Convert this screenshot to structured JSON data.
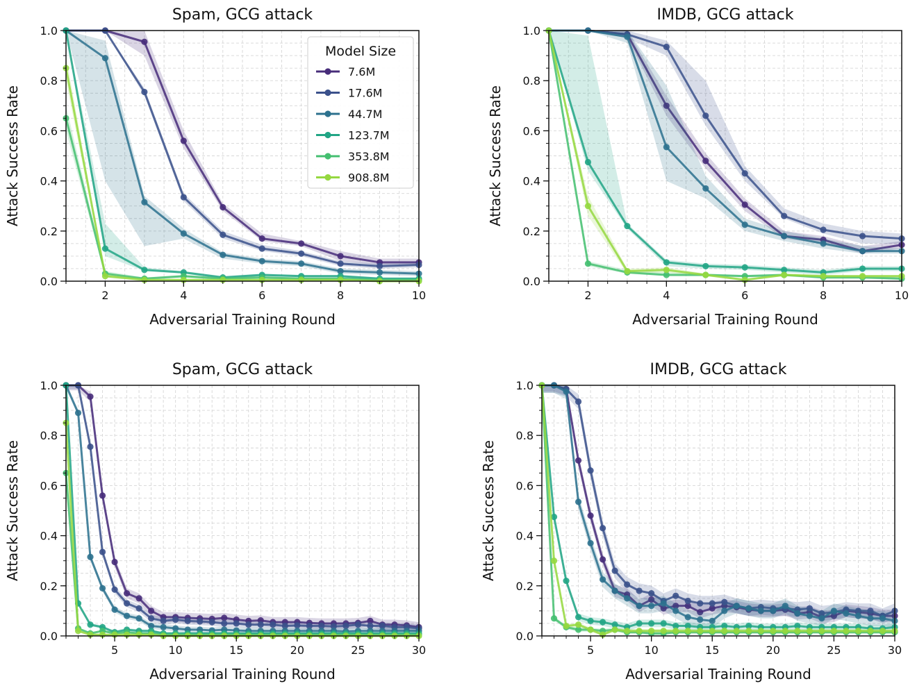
{
  "legend": {
    "title": "Model Size",
    "items": [
      {
        "label": "7.6M",
        "color": "#472c7a"
      },
      {
        "label": "17.6M",
        "color": "#3b518b"
      },
      {
        "label": "44.7M",
        "color": "#2c718e"
      },
      {
        "label": "123.7M",
        "color": "#21a585"
      },
      {
        "label": "353.8M",
        "color": "#44bf70"
      },
      {
        "label": "908.8M",
        "color": "#95d840"
      }
    ],
    "placement": "top-right of first panel"
  },
  "chart_data": [
    {
      "type": "line",
      "title": "Spam, GCG attack",
      "xlabel": "Adversarial Training Round",
      "ylabel": "Attack Success Rate",
      "xlim": [
        1,
        10
      ],
      "ylim": [
        0,
        1
      ],
      "xticks": [
        2,
        4,
        6,
        8,
        10
      ],
      "yticks": [
        0.0,
        0.2,
        0.4,
        0.6,
        0.8,
        1.0
      ],
      "grid": true,
      "x": [
        1,
        2,
        3,
        4,
        5,
        6,
        7,
        8,
        9,
        10
      ],
      "series": [
        {
          "name": "7.6M",
          "values": [
            1.0,
            1.0,
            0.955,
            0.56,
            0.295,
            0.17,
            0.15,
            0.1,
            0.075,
            0.075
          ],
          "lower": [
            1.0,
            1.0,
            0.9,
            0.53,
            0.28,
            0.16,
            0.14,
            0.08,
            0.065,
            0.065
          ],
          "upper": [
            1.0,
            1.0,
            1.0,
            0.6,
            0.31,
            0.19,
            0.16,
            0.12,
            0.09,
            0.09
          ]
        },
        {
          "name": "17.6M",
          "values": [
            1.0,
            1.0,
            0.755,
            0.335,
            0.185,
            0.13,
            0.11,
            0.07,
            0.06,
            0.065
          ],
          "lower": [
            1.0,
            1.0,
            0.74,
            0.32,
            0.17,
            0.12,
            0.1,
            0.06,
            0.05,
            0.055
          ],
          "upper": [
            1.0,
            1.0,
            0.77,
            0.35,
            0.2,
            0.145,
            0.12,
            0.08,
            0.07,
            0.075
          ]
        },
        {
          "name": "44.7M",
          "values": [
            1.0,
            0.89,
            0.315,
            0.19,
            0.105,
            0.08,
            0.07,
            0.04,
            0.035,
            0.03
          ],
          "lower": [
            1.0,
            0.4,
            0.14,
            0.17,
            0.09,
            0.07,
            0.06,
            0.03,
            0.025,
            0.02
          ],
          "upper": [
            1.0,
            0.96,
            0.34,
            0.21,
            0.115,
            0.09,
            0.08,
            0.05,
            0.045,
            0.04
          ]
        },
        {
          "name": "123.7M",
          "values": [
            1.0,
            0.13,
            0.045,
            0.035,
            0.015,
            0.025,
            0.02,
            0.02,
            0.01,
            0.01
          ],
          "lower": [
            1.0,
            0.1,
            0.04,
            0.03,
            0.01,
            0.02,
            0.015,
            0.015,
            0.005,
            0.005
          ],
          "upper": [
            1.0,
            0.23,
            0.055,
            0.04,
            0.02,
            0.03,
            0.025,
            0.025,
            0.015,
            0.015
          ]
        },
        {
          "name": "353.8M",
          "values": [
            0.65,
            0.03,
            0.01,
            0.02,
            0.01,
            0.015,
            0.01,
            0.01,
            0.005,
            0.005
          ],
          "lower": [
            0.6,
            0.02,
            0.005,
            0.015,
            0.005,
            0.01,
            0.005,
            0.005,
            0.0,
            0.0
          ],
          "upper": [
            0.7,
            0.04,
            0.015,
            0.025,
            0.015,
            0.02,
            0.015,
            0.015,
            0.01,
            0.01
          ]
        },
        {
          "name": "908.8M",
          "values": [
            0.85,
            0.02,
            0.005,
            0.005,
            0.005,
            0.005,
            0.005,
            0.005,
            0.0,
            0.0
          ],
          "lower": [
            0.8,
            0.015,
            0.0,
            0.0,
            0.0,
            0.0,
            0.0,
            0.0,
            0.0,
            0.0
          ],
          "upper": [
            0.9,
            0.03,
            0.01,
            0.01,
            0.01,
            0.01,
            0.01,
            0.01,
            0.005,
            0.005
          ]
        }
      ]
    },
    {
      "type": "line",
      "title": "IMDB, GCG attack",
      "xlabel": "Adversarial Training Round",
      "ylabel": "Attack Success Rate",
      "xlim": [
        1,
        10
      ],
      "ylim": [
        0,
        1
      ],
      "xticks": [
        2,
        4,
        6,
        8,
        10
      ],
      "yticks": [
        0.0,
        0.2,
        0.4,
        0.6,
        0.8,
        1.0
      ],
      "grid": true,
      "x": [
        1,
        2,
        3,
        4,
        5,
        6,
        7,
        8,
        9,
        10
      ],
      "series": [
        {
          "name": "7.6M",
          "values": [
            1.0,
            1.0,
            0.985,
            0.7,
            0.48,
            0.305,
            0.18,
            0.165,
            0.12,
            0.145
          ],
          "lower": [
            1.0,
            1.0,
            0.97,
            0.66,
            0.45,
            0.28,
            0.17,
            0.15,
            0.11,
            0.13
          ],
          "upper": [
            1.0,
            1.0,
            1.0,
            0.74,
            0.51,
            0.33,
            0.2,
            0.18,
            0.14,
            0.16
          ]
        },
        {
          "name": "17.6M",
          "values": [
            1.0,
            1.0,
            0.985,
            0.935,
            0.66,
            0.43,
            0.26,
            0.205,
            0.18,
            0.17
          ],
          "lower": [
            1.0,
            1.0,
            0.97,
            0.9,
            0.62,
            0.4,
            0.25,
            0.19,
            0.15,
            0.15
          ],
          "upper": [
            1.0,
            1.0,
            1.0,
            0.96,
            0.8,
            0.46,
            0.29,
            0.23,
            0.2,
            0.19
          ]
        },
        {
          "name": "44.7M",
          "values": [
            1.0,
            1.0,
            0.975,
            0.535,
            0.37,
            0.225,
            0.18,
            0.15,
            0.12,
            0.12
          ],
          "lower": [
            1.0,
            1.0,
            0.95,
            0.4,
            0.33,
            0.2,
            0.16,
            0.13,
            0.11,
            0.11
          ],
          "upper": [
            1.0,
            1.0,
            1.0,
            0.78,
            0.42,
            0.25,
            0.2,
            0.17,
            0.14,
            0.13
          ]
        },
        {
          "name": "123.7M",
          "values": [
            1.0,
            0.475,
            0.22,
            0.075,
            0.06,
            0.055,
            0.045,
            0.035,
            0.05,
            0.05
          ],
          "lower": [
            1.0,
            0.44,
            0.21,
            0.06,
            0.05,
            0.045,
            0.035,
            0.025,
            0.04,
            0.04
          ],
          "upper": [
            1.0,
            0.98,
            0.23,
            0.085,
            0.07,
            0.065,
            0.055,
            0.045,
            0.06,
            0.06
          ]
        },
        {
          "name": "353.8M",
          "values": [
            1.0,
            0.07,
            0.035,
            0.025,
            0.025,
            0.02,
            0.025,
            0.015,
            0.015,
            0.01
          ],
          "lower": [
            1.0,
            0.06,
            0.03,
            0.02,
            0.02,
            0.015,
            0.02,
            0.01,
            0.01,
            0.005
          ],
          "upper": [
            1.0,
            0.08,
            0.045,
            0.035,
            0.03,
            0.025,
            0.03,
            0.02,
            0.02,
            0.015
          ]
        },
        {
          "name": "908.8M",
          "values": [
            1.0,
            0.3,
            0.04,
            0.045,
            0.025,
            0.005,
            0.025,
            0.02,
            0.02,
            0.02
          ],
          "lower": [
            1.0,
            0.26,
            0.03,
            0.035,
            0.02,
            0.0,
            0.02,
            0.015,
            0.015,
            0.015
          ],
          "upper": [
            1.0,
            0.34,
            0.05,
            0.055,
            0.03,
            0.01,
            0.03,
            0.025,
            0.025,
            0.025
          ]
        }
      ]
    },
    {
      "type": "line",
      "title": "Spam, GCG attack",
      "xlabel": "Adversarial Training Round",
      "ylabel": "Attack Success Rate",
      "xlim": [
        1,
        30
      ],
      "ylim": [
        0,
        1
      ],
      "xticks": [
        5,
        10,
        15,
        20,
        25,
        30
      ],
      "yticks": [
        0.0,
        0.2,
        0.4,
        0.6,
        0.8,
        1.0
      ],
      "grid": true,
      "x": [
        1,
        2,
        3,
        4,
        5,
        6,
        7,
        8,
        9,
        10,
        11,
        12,
        13,
        14,
        15,
        16,
        17,
        18,
        19,
        20,
        21,
        22,
        23,
        24,
        25,
        26,
        27,
        28,
        29,
        30
      ],
      "series": [
        {
          "name": "7.6M",
          "values": [
            1.0,
            1.0,
            0.955,
            0.56,
            0.295,
            0.17,
            0.15,
            0.1,
            0.075,
            0.075,
            0.072,
            0.07,
            0.068,
            0.072,
            0.065,
            0.06,
            0.062,
            0.055,
            0.055,
            0.055,
            0.052,
            0.05,
            0.05,
            0.05,
            0.052,
            0.06,
            0.045,
            0.045,
            0.042,
            0.035
          ],
          "band": 0.02
        },
        {
          "name": "17.6M",
          "values": [
            1.0,
            1.0,
            0.755,
            0.335,
            0.185,
            0.13,
            0.11,
            0.07,
            0.06,
            0.065,
            0.06,
            0.058,
            0.055,
            0.05,
            0.05,
            0.045,
            0.045,
            0.045,
            0.04,
            0.042,
            0.04,
            0.04,
            0.038,
            0.04,
            0.045,
            0.04,
            0.04,
            0.035,
            0.035,
            0.03
          ],
          "band": 0.015
        },
        {
          "name": "44.7M",
          "values": [
            1.0,
            0.89,
            0.315,
            0.19,
            0.105,
            0.08,
            0.07,
            0.04,
            0.035,
            0.03,
            0.025,
            0.025,
            0.022,
            0.025,
            0.022,
            0.02,
            0.02,
            0.02,
            0.02,
            0.02,
            0.02,
            0.02,
            0.02,
            0.018,
            0.02,
            0.02,
            0.02,
            0.02,
            0.02,
            0.02
          ],
          "band": 0.012
        },
        {
          "name": "123.7M",
          "values": [
            1.0,
            0.13,
            0.045,
            0.035,
            0.015,
            0.025,
            0.02,
            0.02,
            0.01,
            0.01,
            0.01,
            0.01,
            0.01,
            0.01,
            0.01,
            0.01,
            0.01,
            0.01,
            0.01,
            0.01,
            0.01,
            0.01,
            0.01,
            0.01,
            0.01,
            0.01,
            0.01,
            0.01,
            0.01,
            0.01
          ],
          "band": 0.006
        },
        {
          "name": "353.8M",
          "values": [
            0.65,
            0.03,
            0.01,
            0.02,
            0.01,
            0.015,
            0.01,
            0.01,
            0.005,
            0.005,
            0.005,
            0.005,
            0.005,
            0.005,
            0.005,
            0.005,
            0.005,
            0.005,
            0.005,
            0.005,
            0.005,
            0.005,
            0.005,
            0.005,
            0.005,
            0.005,
            0.005,
            0.005,
            0.005,
            0.005
          ],
          "band": 0.004
        },
        {
          "name": "908.8M",
          "values": [
            0.85,
            0.02,
            0.005,
            0.005,
            0.005,
            0.005,
            0.005,
            0.005,
            0.0,
            0.0,
            0.0,
            0.0,
            0.0,
            0.0,
            0.0,
            0.0,
            0.0,
            0.0,
            0.0,
            0.0,
            0.0,
            0.0,
            0.0,
            0.0,
            0.0,
            0.0,
            0.0,
            0.0,
            0.0,
            0.0
          ],
          "band": 0.004
        }
      ]
    },
    {
      "type": "line",
      "title": "IMDB, GCG attack",
      "xlabel": "Adversarial Training Round",
      "ylabel": "Attack Success Rate",
      "xlim": [
        1,
        30
      ],
      "ylim": [
        0,
        1
      ],
      "xticks": [
        5,
        10,
        15,
        20,
        25,
        30
      ],
      "yticks": [
        0.0,
        0.2,
        0.4,
        0.6,
        0.8,
        1.0
      ],
      "grid": true,
      "x": [
        1,
        2,
        3,
        4,
        5,
        6,
        7,
        8,
        9,
        10,
        11,
        12,
        13,
        14,
        15,
        16,
        17,
        18,
        19,
        20,
        21,
        22,
        23,
        24,
        25,
        26,
        27,
        28,
        29,
        30
      ],
      "series": [
        {
          "name": "7.6M",
          "values": [
            1.0,
            1.0,
            0.985,
            0.7,
            0.48,
            0.305,
            0.18,
            0.165,
            0.12,
            0.145,
            0.11,
            0.12,
            0.12,
            0.095,
            0.11,
            0.12,
            0.115,
            0.105,
            0.1,
            0.1,
            0.105,
            0.09,
            0.095,
            0.075,
            0.08,
            0.1,
            0.095,
            0.09,
            0.08,
            0.08
          ],
          "band": 0.025
        },
        {
          "name": "17.6M",
          "values": [
            1.0,
            1.0,
            0.985,
            0.935,
            0.66,
            0.43,
            0.26,
            0.205,
            0.18,
            0.17,
            0.14,
            0.16,
            0.14,
            0.13,
            0.13,
            0.135,
            0.12,
            0.11,
            0.115,
            0.11,
            0.11,
            0.105,
            0.11,
            0.09,
            0.095,
            0.105,
            0.1,
            0.1,
            0.08,
            0.1
          ],
          "band": 0.03
        },
        {
          "name": "44.7M",
          "values": [
            1.0,
            1.0,
            0.975,
            0.535,
            0.37,
            0.225,
            0.18,
            0.15,
            0.12,
            0.12,
            0.13,
            0.1,
            0.075,
            0.065,
            0.06,
            0.1,
            0.12,
            0.11,
            0.1,
            0.1,
            0.12,
            0.09,
            0.08,
            0.07,
            0.1,
            0.09,
            0.08,
            0.07,
            0.07,
            0.06
          ],
          "band": 0.03
        },
        {
          "name": "123.7M",
          "values": [
            1.0,
            0.475,
            0.22,
            0.075,
            0.06,
            0.055,
            0.045,
            0.035,
            0.05,
            0.05,
            0.05,
            0.04,
            0.04,
            0.035,
            0.035,
            0.04,
            0.035,
            0.04,
            0.035,
            0.035,
            0.035,
            0.04,
            0.035,
            0.035,
            0.035,
            0.035,
            0.035,
            0.03,
            0.03,
            0.035
          ],
          "band": 0.015
        },
        {
          "name": "353.8M",
          "values": [
            1.0,
            0.07,
            0.035,
            0.025,
            0.025,
            0.02,
            0.025,
            0.015,
            0.015,
            0.01,
            0.01,
            0.015,
            0.015,
            0.015,
            0.015,
            0.015,
            0.015,
            0.015,
            0.015,
            0.015,
            0.015,
            0.015,
            0.015,
            0.015,
            0.015,
            0.015,
            0.015,
            0.015,
            0.015,
            0.015
          ],
          "band": 0.008
        },
        {
          "name": "908.8M",
          "values": [
            1.0,
            0.3,
            0.04,
            0.045,
            0.025,
            0.005,
            0.025,
            0.02,
            0.02,
            0.02,
            0.02,
            0.02,
            0.02,
            0.02,
            0.02,
            0.02,
            0.02,
            0.02,
            0.02,
            0.02,
            0.02,
            0.02,
            0.02,
            0.02,
            0.02,
            0.02,
            0.02,
            0.02,
            0.02,
            0.02
          ],
          "band": 0.008
        }
      ]
    }
  ]
}
